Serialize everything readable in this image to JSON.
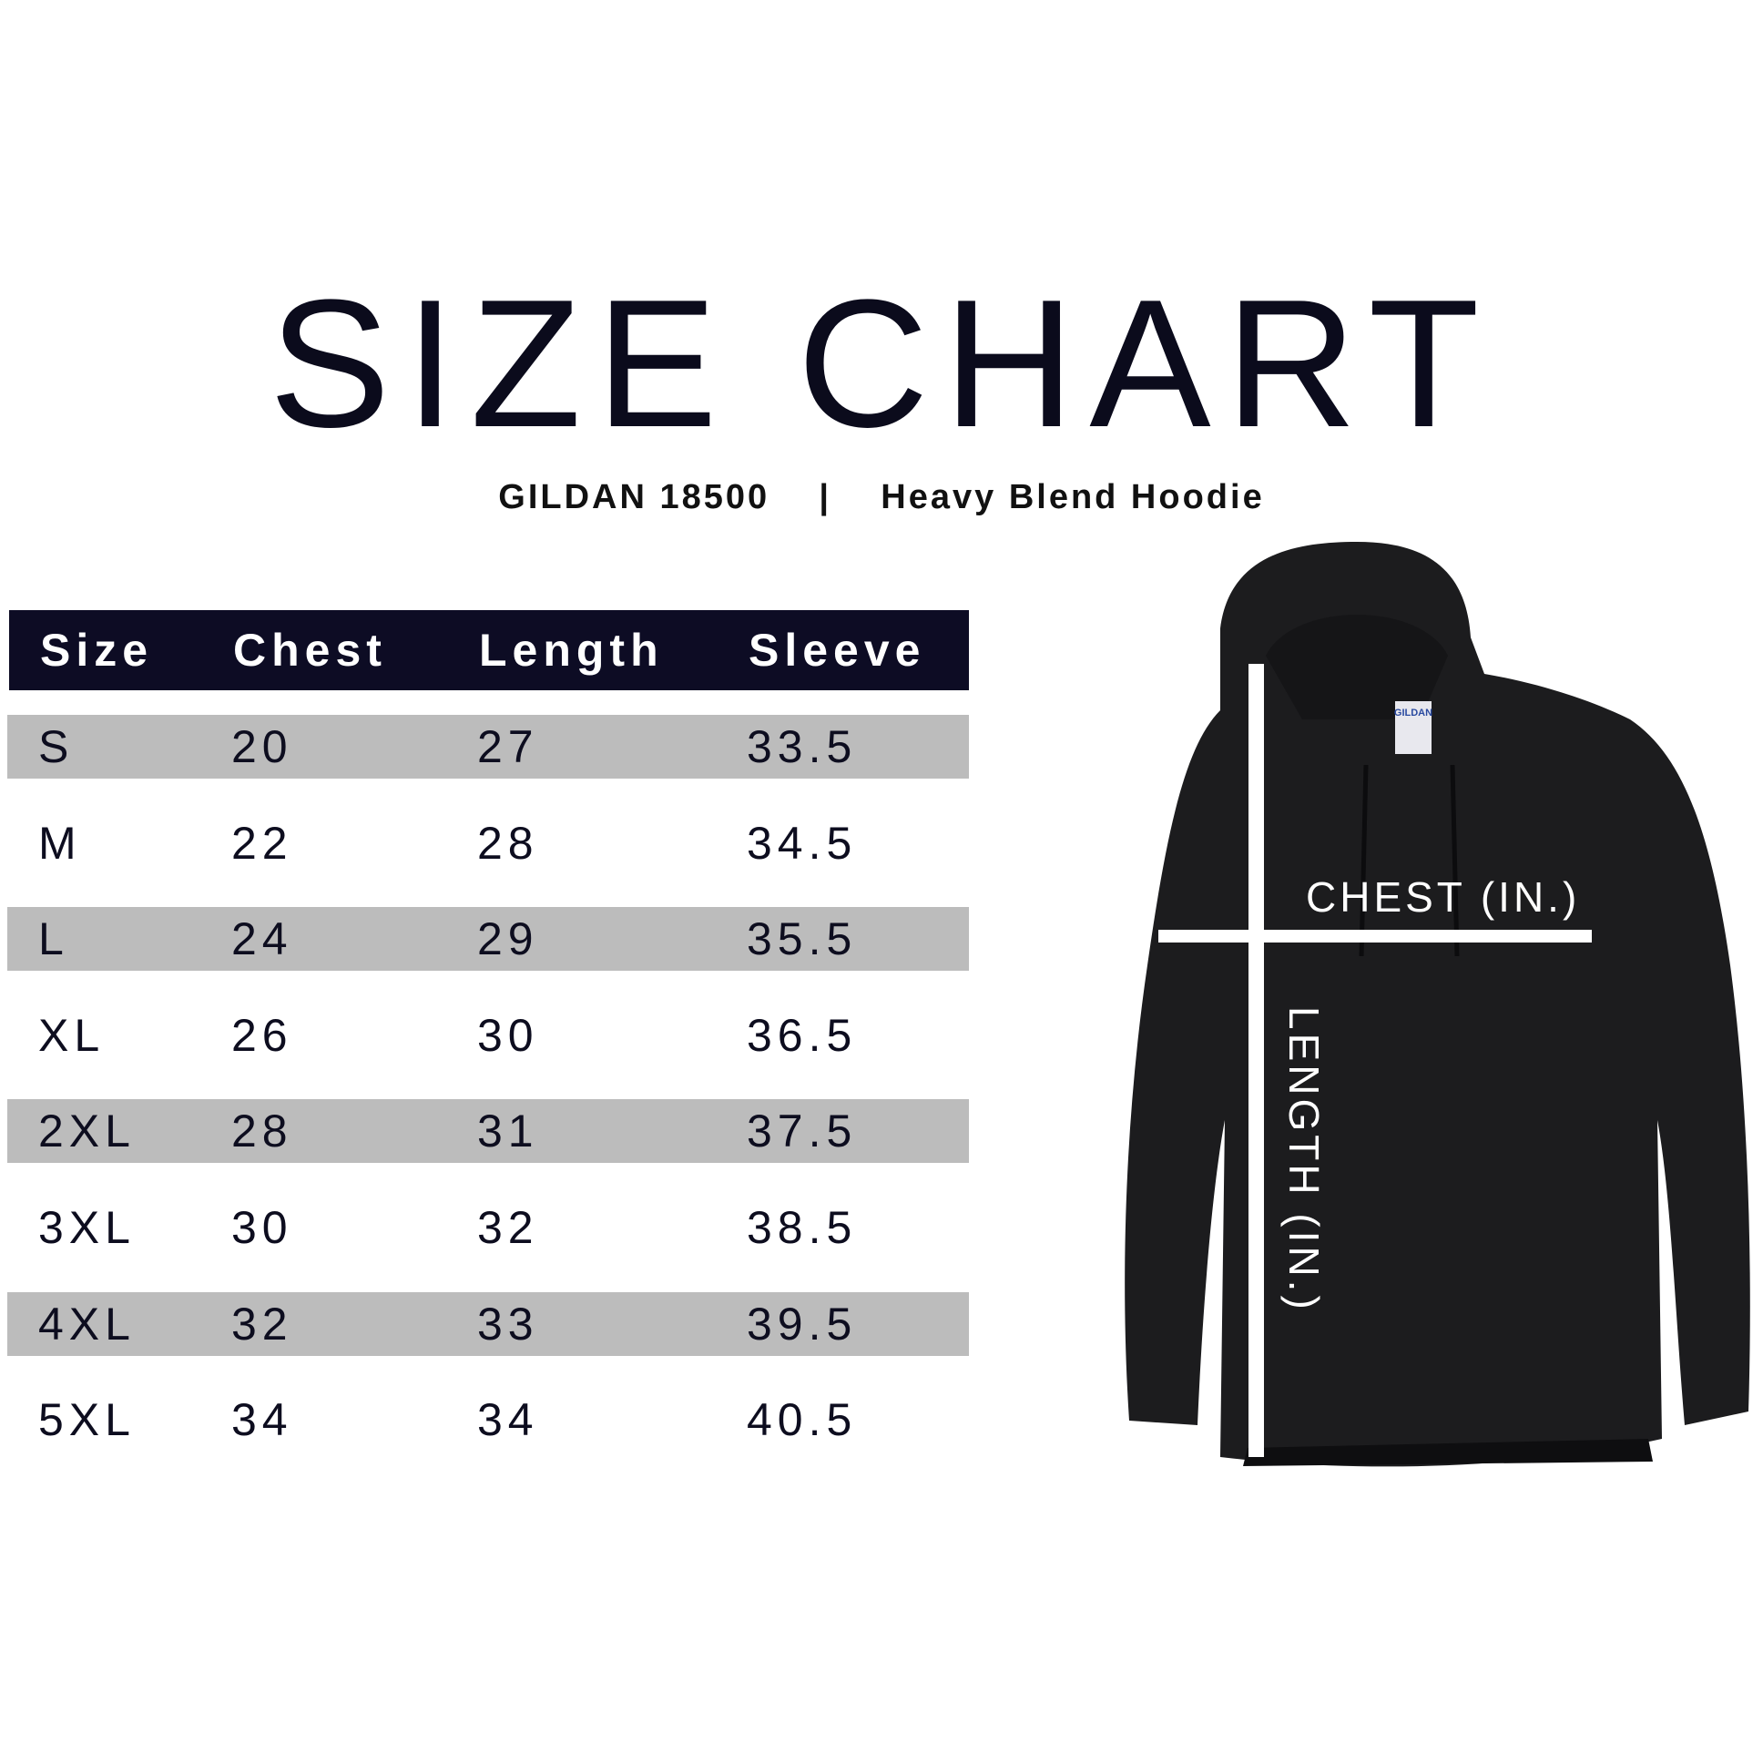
{
  "title": "SIZE CHART",
  "subtitle": {
    "model": "GILDAN 18500",
    "separator": "|",
    "product": "Heavy Blend Hoodie"
  },
  "table": {
    "headers": [
      "Size",
      "Chest",
      "Length",
      "Sleeve"
    ],
    "rows": [
      [
        "S",
        "20",
        "27",
        "33.5"
      ],
      [
        "M",
        "22",
        "28",
        "34.5"
      ],
      [
        "L",
        "24",
        "29",
        "35.5"
      ],
      [
        "XL",
        "26",
        "30",
        "36.5"
      ],
      [
        "2XL",
        "28",
        "31",
        "37.5"
      ],
      [
        "3XL",
        "30",
        "32",
        "38.5"
      ],
      [
        "4XL",
        "32",
        "33",
        "39.5"
      ],
      [
        "5XL",
        "34",
        "34",
        "40.5"
      ]
    ],
    "header_bg": "#0d0c24",
    "stripe_bg": "#bcbcbc"
  },
  "diagram": {
    "chest_label": "CHEST (IN.)",
    "length_label": "LENGTH (IN.)",
    "tag_text": "GILDAN",
    "garment_color": "#1c1c1e"
  }
}
